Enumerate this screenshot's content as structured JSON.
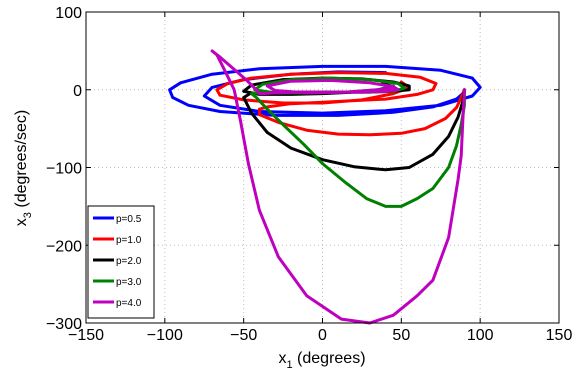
{
  "chart_data": {
    "type": "line",
    "xlabel_main": "x",
    "xlabel_sub": "1",
    "xlabel_rest": " (degrees)",
    "ylabel_main": "x",
    "ylabel_sub": "3",
    "ylabel_rest": " (degrees/sec)",
    "xlim": [
      -150,
      150
    ],
    "ylim": [
      -300,
      100
    ],
    "xticks": [
      -150,
      -100,
      -50,
      0,
      50,
      100,
      150
    ],
    "yticks": [
      -300,
      -200,
      -100,
      0,
      100
    ],
    "xtick_labels": [
      "−150",
      "−100",
      "−50",
      "0",
      "50",
      "100",
      "150"
    ],
    "ytick_labels": [
      "−300",
      "−200",
      "−100",
      "0",
      "100"
    ],
    "grid": true,
    "legend_position": "bottom-left",
    "series": [
      {
        "name": "p=0.5",
        "color": "#0000ff",
        "x": [
          90,
          85,
          70,
          45,
          10,
          -30,
          -65,
          -85,
          -95,
          -97,
          -90,
          -70,
          -40,
          0,
          40,
          75,
          95,
          100,
          95,
          75,
          40,
          0,
          -40,
          -65,
          -75,
          -70,
          -50,
          -20,
          10,
          40
        ],
        "y": [
          -3,
          -12,
          -22,
          -29,
          -33,
          -33,
          -28,
          -20,
          -10,
          0,
          9,
          20,
          27,
          30,
          30,
          25,
          15,
          3,
          -8,
          -20,
          -27,
          -30,
          -28,
          -20,
          -8,
          3,
          13,
          20,
          23,
          22
        ]
      },
      {
        "name": "p=1.0",
        "color": "#ff0000",
        "x": [
          90,
          88,
          85,
          78,
          65,
          50,
          30,
          10,
          -10,
          -28,
          -40,
          -40,
          -35,
          -20,
          0,
          20,
          40,
          60,
          70,
          72,
          62,
          40,
          10,
          -20,
          -45,
          -60,
          -67,
          -65,
          -50,
          -25,
          0,
          25,
          45,
          55,
          50
        ],
        "y": [
          0,
          -10,
          -23,
          -37,
          -50,
          -56,
          -58,
          -57,
          -52,
          -42,
          -32,
          -25,
          -22,
          -18,
          -16,
          -14,
          -12,
          -6,
          0,
          8,
          16,
          21,
          22,
          20,
          15,
          8,
          0,
          -7,
          -13,
          -17,
          -17,
          -13,
          -5,
          3,
          10
        ]
      },
      {
        "name": "p=2.0",
        "color": "#000000",
        "x": [
          90,
          89,
          86,
          80,
          70,
          55,
          40,
          20,
          0,
          -20,
          -35,
          -45,
          -50,
          -46,
          -30,
          -10,
          10,
          30,
          45,
          55,
          55,
          45,
          25,
          0,
          -25,
          -45,
          -50,
          -40,
          -20,
          0,
          20,
          38,
          45,
          38
        ],
        "y": [
          0,
          -15,
          -35,
          -60,
          -83,
          -100,
          -103,
          -99,
          -90,
          -75,
          -55,
          -30,
          -10,
          -5,
          -3,
          -3,
          -3,
          -3,
          -2,
          0,
          5,
          10,
          14,
          15,
          13,
          6,
          -2,
          -6,
          -6,
          -5,
          -3,
          0,
          4,
          8
        ]
      },
      {
        "name": "p=3.0",
        "color": "#008000",
        "x": [
          90,
          90,
          88,
          85,
          80,
          70,
          60,
          50,
          40,
          28,
          15,
          0,
          -12,
          -25,
          -35,
          -42,
          -45,
          -40,
          -25,
          -10,
          10,
          30,
          45,
          52,
          48,
          30,
          5,
          -20,
          -38,
          -43,
          -30,
          -10,
          15,
          35,
          45
        ],
        "y": [
          0,
          -20,
          -45,
          -72,
          -100,
          -127,
          -140,
          -150,
          -150,
          -140,
          -120,
          -95,
          -70,
          -45,
          -25,
          -10,
          -5,
          -4,
          -3,
          -3,
          -3,
          -3,
          -2,
          2,
          8,
          13,
          15,
          13,
          7,
          0,
          -4,
          -4,
          -3,
          0,
          5
        ]
      },
      {
        "name": "p=4.0",
        "color": "#bf00bf",
        "x": [
          90,
          89,
          88,
          86,
          80,
          70,
          60,
          45,
          30,
          12,
          -10,
          -28,
          -40,
          -47,
          -52,
          -56,
          -62,
          -67,
          -70,
          -65,
          -57,
          -48,
          -42,
          -40,
          -38,
          -30,
          -15,
          5,
          25,
          40,
          48,
          45,
          30,
          5,
          -20,
          -35,
          -30,
          -10,
          15,
          35,
          45
        ],
        "y": [
          0,
          -40,
          -85,
          -115,
          -190,
          -245,
          -265,
          -290,
          -300,
          -295,
          -265,
          -215,
          -155,
          -95,
          -40,
          0,
          25,
          45,
          50,
          42,
          28,
          12,
          0,
          -5,
          -5,
          -4,
          -3,
          -3,
          -3,
          -2,
          0,
          4,
          9,
          12,
          11,
          5,
          -1,
          -4,
          -3,
          0,
          3
        ]
      }
    ]
  }
}
